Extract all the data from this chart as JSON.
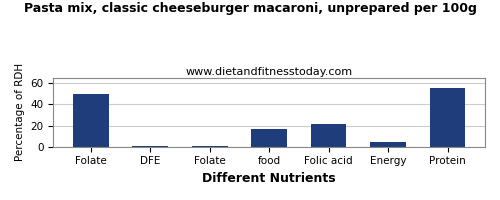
{
  "title": "Pasta mix, classic cheeseburger macaroni, unprepared per 100g",
  "subtitle": "www.dietandfitnesstoday.com",
  "xlabel": "Different Nutrients",
  "ylabel": "Percentage of RDH",
  "categories": [
    "Folate",
    "DFE",
    "Folate",
    "food",
    "Folic acid",
    "Energy",
    "Protein"
  ],
  "values": [
    50,
    0.3,
    0.3,
    17,
    21,
    4,
    55
  ],
  "bar_color": "#1f3d7a",
  "ylim": [
    0,
    65
  ],
  "yticks": [
    0,
    20,
    40,
    60
  ],
  "background_color": "#ffffff",
  "plot_bg_color": "#ffffff",
  "border_color": "#888888",
  "title_fontsize": 9,
  "subtitle_fontsize": 8,
  "xlabel_fontsize": 9,
  "ylabel_fontsize": 7.5,
  "tick_fontsize": 7.5
}
